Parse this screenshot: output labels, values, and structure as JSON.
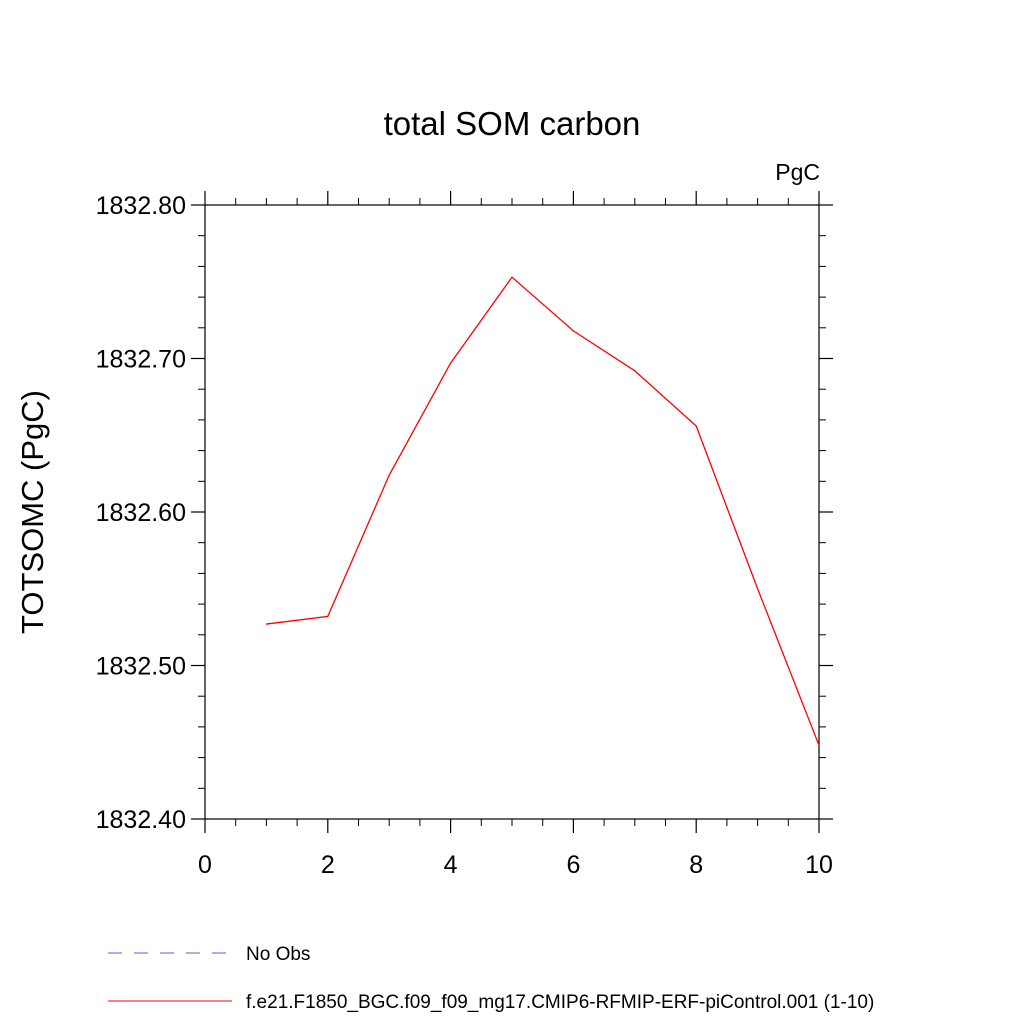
{
  "chart_data": {
    "type": "line",
    "title": "total SOM carbon",
    "units": "PgC",
    "xlabel": "",
    "ylabel": "TOTSOMC  (PgC)",
    "xlim": [
      0,
      10
    ],
    "ylim": [
      1832.4,
      1832.8
    ],
    "x_ticks": [
      0,
      2,
      4,
      6,
      8,
      10
    ],
    "x_tick_labels": [
      "0",
      "2",
      "4",
      "6",
      "8",
      "10"
    ],
    "y_ticks": [
      1832.4,
      1832.5,
      1832.6,
      1832.7,
      1832.8
    ],
    "y_tick_labels": [
      "1832.40",
      "1832.50",
      "1832.60",
      "1832.70",
      "1832.80"
    ],
    "x_minor_step": 0.5,
    "y_minor_step": 0.02,
    "grid": false,
    "legend_position": "bottom",
    "series": [
      {
        "name": "No Obs",
        "color": "#6a5acd",
        "dashed": true,
        "x": [],
        "values": []
      },
      {
        "name": "f.e21.F1850_BGC.f09_f09_mg17.CMIP6-RFMIP-ERF-piControl.001 (1-10)",
        "color": "#ff0000",
        "dashed": false,
        "x": [
          1,
          2,
          3,
          4,
          5,
          6,
          7,
          8,
          9,
          10
        ],
        "values": [
          1832.527,
          1832.532,
          1832.624,
          1832.697,
          1832.753,
          1832.718,
          1832.692,
          1832.656,
          1832.55,
          1832.448
        ]
      }
    ]
  }
}
